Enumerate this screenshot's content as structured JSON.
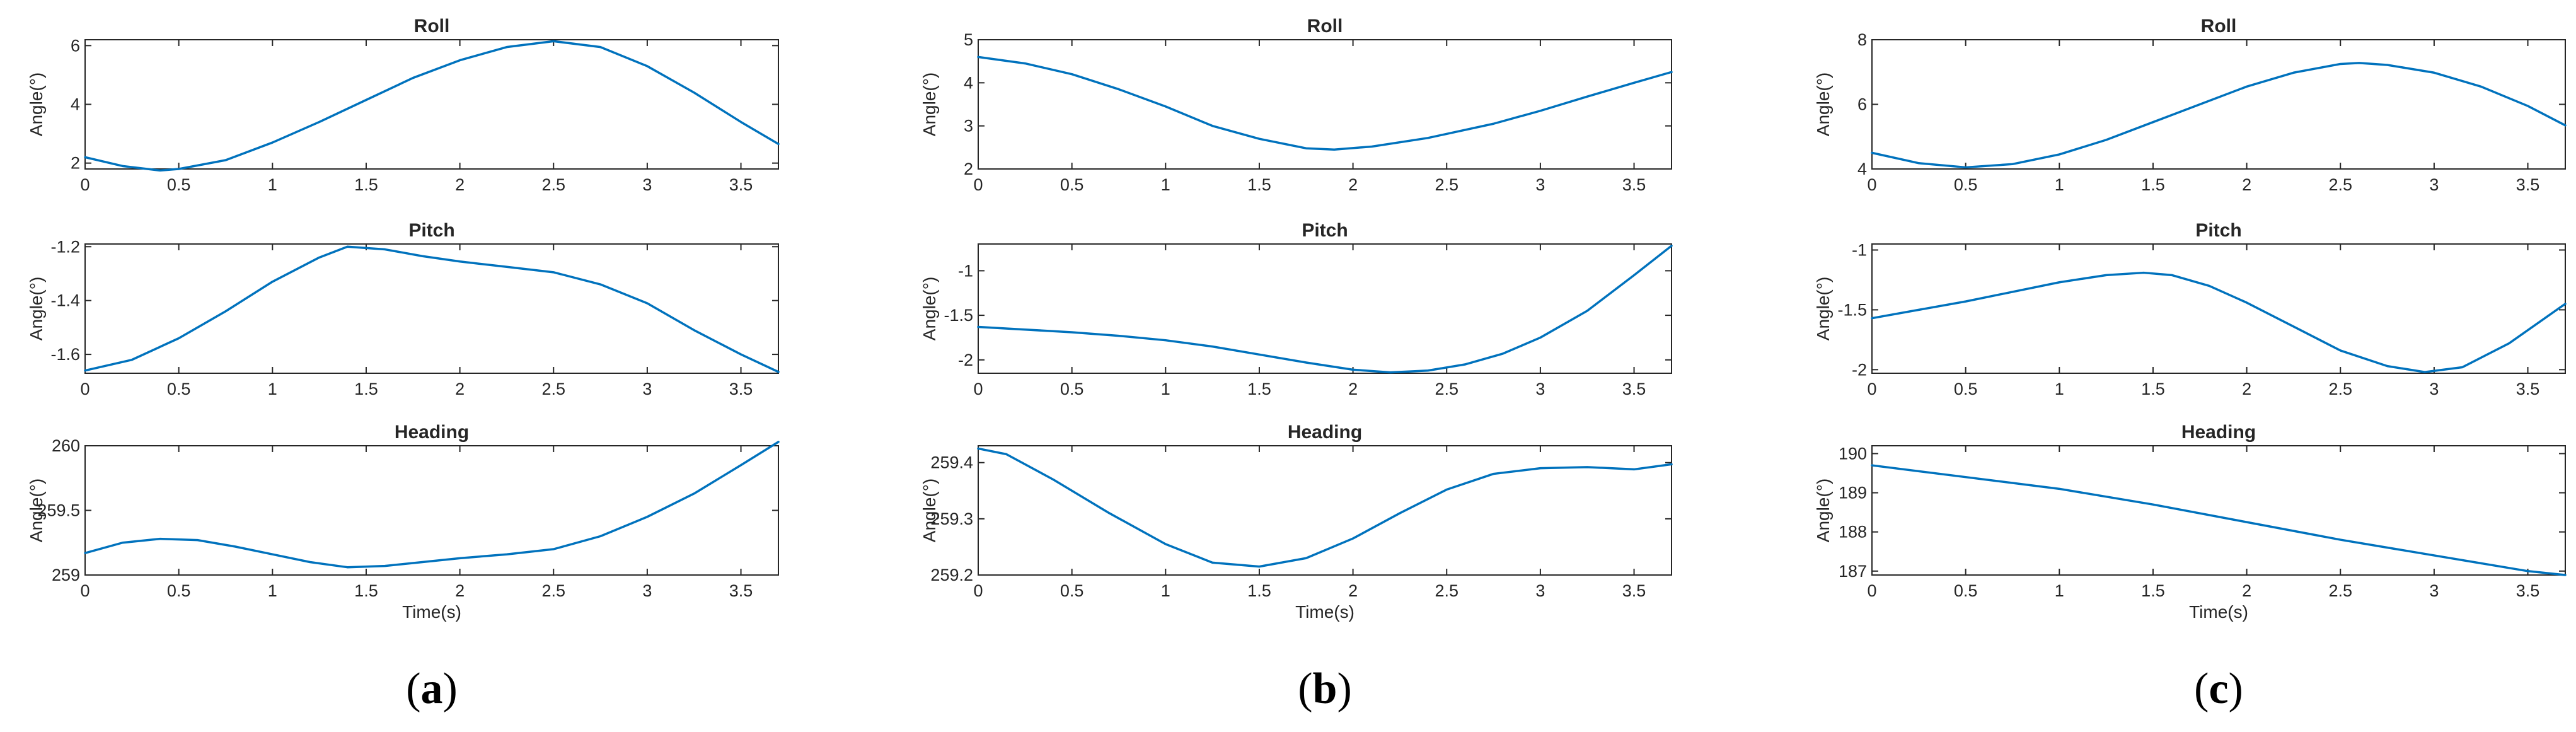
{
  "figure": {
    "series_color": "#0072BD",
    "line_color": "#262626"
  },
  "chart_data": [
    {
      "panel": "a",
      "caption": {
        "open": "(",
        "letter": "a",
        "close": ")"
      },
      "subplots": [
        {
          "type": "line",
          "title": "Roll",
          "xlabel": "",
          "ylabel": "Angle(°)",
          "xlim": [
            0,
            3.7
          ],
          "ylim": [
            1.8,
            6.2
          ],
          "xticks": [
            0,
            0.5,
            1,
            1.5,
            2,
            2.5,
            3,
            3.5
          ],
          "xtick_labels": [
            "0",
            "0.5",
            "1",
            "1.5",
            "2",
            "2.5",
            "3",
            "3.5"
          ],
          "yticks": [
            2,
            4,
            6
          ],
          "ytick_labels": [
            "2",
            "4",
            "6"
          ],
          "x": [
            0,
            0.2,
            0.4,
            0.5,
            0.75,
            1,
            1.25,
            1.5,
            1.75,
            2,
            2.25,
            2.5,
            2.75,
            3,
            3.25,
            3.5,
            3.7
          ],
          "y": [
            2.2,
            1.9,
            1.75,
            1.8,
            2.1,
            2.7,
            3.4,
            4.15,
            4.9,
            5.5,
            5.95,
            6.15,
            5.95,
            5.3,
            4.4,
            3.4,
            2.65
          ]
        },
        {
          "type": "line",
          "title": "Pitch",
          "xlabel": "",
          "ylabel": "Angle(°)",
          "xlim": [
            0,
            3.7
          ],
          "ylim": [
            -1.67,
            -1.19
          ],
          "xticks": [
            0,
            0.5,
            1,
            1.5,
            2,
            2.5,
            3,
            3.5
          ],
          "xtick_labels": [
            "0",
            "0.5",
            "1",
            "1.5",
            "2",
            "2.5",
            "3",
            "3.5"
          ],
          "yticks": [
            -1.6,
            -1.4,
            -1.2
          ],
          "ytick_labels": [
            "-1.6",
            "-1.4",
            "-1.2"
          ],
          "x": [
            0,
            0.25,
            0.5,
            0.75,
            1,
            1.25,
            1.4,
            1.6,
            1.8,
            2,
            2.25,
            2.5,
            2.75,
            3,
            3.25,
            3.5,
            3.7
          ],
          "y": [
            -1.66,
            -1.62,
            -1.54,
            -1.44,
            -1.33,
            -1.24,
            -1.2,
            -1.21,
            -1.235,
            -1.255,
            -1.275,
            -1.295,
            -1.34,
            -1.41,
            -1.51,
            -1.6,
            -1.665
          ]
        },
        {
          "type": "line",
          "title": "Heading",
          "xlabel": "Time(s)",
          "ylabel": "Angle(°)",
          "xlim": [
            0,
            3.7
          ],
          "ylim": [
            259,
            260
          ],
          "xticks": [
            0,
            0.5,
            1,
            1.5,
            2,
            2.5,
            3,
            3.5
          ],
          "xtick_labels": [
            "0",
            "0.5",
            "1",
            "1.5",
            "2",
            "2.5",
            "3",
            "3.5"
          ],
          "yticks": [
            259,
            259.5,
            260
          ],
          "ytick_labels": [
            "259",
            "259.5",
            "260"
          ],
          "x": [
            0,
            0.2,
            0.4,
            0.6,
            0.8,
            1,
            1.2,
            1.4,
            1.6,
            1.8,
            2,
            2.25,
            2.5,
            2.75,
            3,
            3.25,
            3.5,
            3.7
          ],
          "y": [
            259.17,
            259.25,
            259.28,
            259.27,
            259.22,
            259.16,
            259.1,
            259.06,
            259.07,
            259.1,
            259.13,
            259.16,
            259.2,
            259.3,
            259.45,
            259.63,
            259.85,
            260.03
          ]
        }
      ]
    },
    {
      "panel": "b",
      "caption": {
        "open": "(",
        "letter": "b",
        "close": ")"
      },
      "subplots": [
        {
          "type": "line",
          "title": "Roll",
          "xlabel": "",
          "ylabel": "Angle(°)",
          "xlim": [
            0,
            3.7
          ],
          "ylim": [
            2,
            5
          ],
          "xticks": [
            0,
            0.5,
            1,
            1.5,
            2,
            2.5,
            3,
            3.5
          ],
          "xtick_labels": [
            "0",
            "0.5",
            "1",
            "1.5",
            "2",
            "2.5",
            "3",
            "3.5"
          ],
          "yticks": [
            2,
            3,
            4,
            5
          ],
          "ytick_labels": [
            "2",
            "3",
            "4",
            "5"
          ],
          "x": [
            0,
            0.25,
            0.5,
            0.75,
            1,
            1.25,
            1.5,
            1.75,
            1.9,
            2.1,
            2.4,
            2.75,
            3,
            3.25,
            3.5,
            3.7
          ],
          "y": [
            4.6,
            4.45,
            4.2,
            3.85,
            3.45,
            3.0,
            2.7,
            2.48,
            2.45,
            2.52,
            2.72,
            3.05,
            3.35,
            3.68,
            4.0,
            4.25
          ]
        },
        {
          "type": "line",
          "title": "Pitch",
          "xlabel": "",
          "ylabel": "Angle(°)",
          "xlim": [
            0,
            3.7
          ],
          "ylim": [
            -2.15,
            -0.7
          ],
          "xticks": [
            0,
            0.5,
            1,
            1.5,
            2,
            2.5,
            3,
            3.5
          ],
          "xtick_labels": [
            "0",
            "0.5",
            "1",
            "1.5",
            "2",
            "2.5",
            "3",
            "3.5"
          ],
          "yticks": [
            -2,
            -1.5,
            -1
          ],
          "ytick_labels": [
            "-2",
            "-1.5",
            "-1"
          ],
          "x": [
            0,
            0.25,
            0.5,
            0.75,
            1,
            1.25,
            1.5,
            1.75,
            2,
            2.2,
            2.4,
            2.6,
            2.8,
            3,
            3.25,
            3.5,
            3.7
          ],
          "y": [
            -1.63,
            -1.66,
            -1.69,
            -1.73,
            -1.78,
            -1.85,
            -1.94,
            -2.03,
            -2.11,
            -2.14,
            -2.12,
            -2.05,
            -1.93,
            -1.75,
            -1.45,
            -1.05,
            -0.72
          ]
        },
        {
          "type": "line",
          "title": "Heading",
          "xlabel": "Time(s)",
          "ylabel": "Angle(°)",
          "xlim": [
            0,
            3.7
          ],
          "ylim": [
            259.2,
            259.43
          ],
          "xticks": [
            0,
            0.5,
            1,
            1.5,
            2,
            2.5,
            3,
            3.5
          ],
          "xtick_labels": [
            "0",
            "0.5",
            "1",
            "1.5",
            "2",
            "2.5",
            "3",
            "3.5"
          ],
          "yticks": [
            259.2,
            259.3,
            259.4
          ],
          "ytick_labels": [
            "259.2",
            "259.3",
            "259.4"
          ],
          "x": [
            0,
            0.15,
            0.4,
            0.7,
            1,
            1.25,
            1.5,
            1.75,
            2,
            2.25,
            2.5,
            2.75,
            3,
            3.25,
            3.5,
            3.7
          ],
          "y": [
            259.425,
            259.415,
            259.37,
            259.31,
            259.255,
            259.222,
            259.215,
            259.23,
            259.265,
            259.31,
            259.352,
            259.38,
            259.39,
            259.392,
            259.388,
            259.397
          ]
        }
      ]
    },
    {
      "panel": "c",
      "caption": {
        "open": "(",
        "letter": "c",
        "close": ")"
      },
      "subplots": [
        {
          "type": "line",
          "title": "Roll",
          "xlabel": "",
          "ylabel": "Angle(°)",
          "xlim": [
            0,
            3.7
          ],
          "ylim": [
            4,
            8
          ],
          "xticks": [
            0,
            0.5,
            1,
            1.5,
            2,
            2.5,
            3,
            3.5
          ],
          "xtick_labels": [
            "0",
            "0.5",
            "1",
            "1.5",
            "2",
            "2.5",
            "3",
            "3.5"
          ],
          "yticks": [
            4,
            6,
            8
          ],
          "ytick_labels": [
            "4",
            "6",
            "8"
          ],
          "x": [
            0,
            0.25,
            0.5,
            0.75,
            1,
            1.25,
            1.5,
            1.75,
            2,
            2.25,
            2.5,
            2.6,
            2.75,
            3,
            3.25,
            3.5,
            3.7
          ],
          "y": [
            4.5,
            4.18,
            4.05,
            4.15,
            4.45,
            4.9,
            5.45,
            6.0,
            6.55,
            6.98,
            7.25,
            7.28,
            7.22,
            6.98,
            6.55,
            5.95,
            5.35
          ]
        },
        {
          "type": "line",
          "title": "Pitch",
          "xlabel": "",
          "ylabel": "Angle(°)",
          "xlim": [
            0,
            3.7
          ],
          "ylim": [
            -2.03,
            -0.95
          ],
          "xticks": [
            0,
            0.5,
            1,
            1.5,
            2,
            2.5,
            3,
            3.5
          ],
          "xtick_labels": [
            "0",
            "0.5",
            "1",
            "1.5",
            "2",
            "2.5",
            "3",
            "3.5"
          ],
          "yticks": [
            -2,
            -1.5,
            -1
          ],
          "ytick_labels": [
            "-2",
            "-1.5",
            "-1"
          ],
          "x": [
            0,
            0.25,
            0.5,
            0.75,
            1,
            1.25,
            1.45,
            1.6,
            1.8,
            2,
            2.25,
            2.5,
            2.75,
            2.95,
            3.15,
            3.4,
            3.7
          ],
          "y": [
            -1.57,
            -1.5,
            -1.43,
            -1.35,
            -1.27,
            -1.21,
            -1.19,
            -1.21,
            -1.3,
            -1.44,
            -1.64,
            -1.84,
            -1.97,
            -2.02,
            -1.98,
            -1.78,
            -1.45
          ]
        },
        {
          "type": "line",
          "title": "Heading",
          "xlabel": "Time(s)",
          "ylabel": "Angle(°)",
          "xlim": [
            0,
            3.7
          ],
          "ylim": [
            186.9,
            190.2
          ],
          "xticks": [
            0,
            0.5,
            1,
            1.5,
            2,
            2.5,
            3,
            3.5
          ],
          "xtick_labels": [
            "0",
            "0.5",
            "1",
            "1.5",
            "2",
            "2.5",
            "3",
            "3.5"
          ],
          "yticks": [
            187,
            188,
            189,
            190
          ],
          "ytick_labels": [
            "187",
            "188",
            "189",
            "190"
          ],
          "x": [
            0,
            0.5,
            1,
            1.5,
            2,
            2.5,
            3,
            3.5,
            3.7
          ],
          "y": [
            189.7,
            189.4,
            189.1,
            188.7,
            188.25,
            187.8,
            187.4,
            187.0,
            186.9
          ]
        }
      ]
    }
  ]
}
